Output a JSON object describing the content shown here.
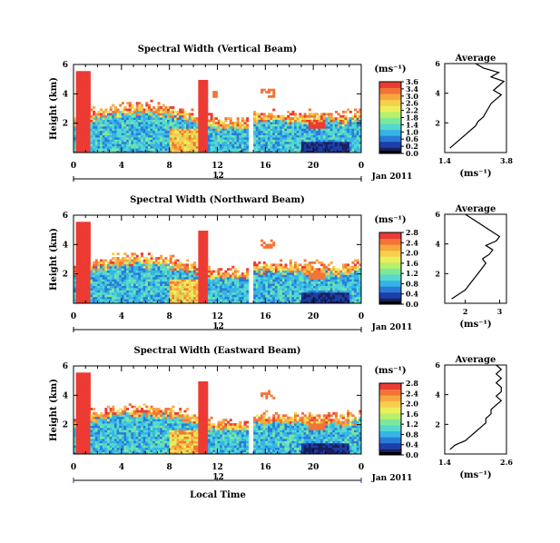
{
  "x_axis_label": "Local Time",
  "colors": {
    "colormap": [
      "#1a1f5c",
      "#1c3fa8",
      "#2a7bd8",
      "#36b4e6",
      "#54d8d0",
      "#7ee89a",
      "#b6f06c",
      "#ecee5c",
      "#f6cf4c",
      "#f7a640",
      "#f37437",
      "#ec3b33"
    ],
    "gap": "#ffffff"
  },
  "chart_data": [
    {
      "type": "heatmap",
      "title": "Spectral Width (Vertical Beam)",
      "ylabel": "Height (km)",
      "y_ticks": [
        "6",
        "4",
        "2"
      ],
      "ylim": [
        0,
        6
      ],
      "x_ticks": [
        "0",
        "4",
        "8",
        "12",
        "16",
        "20",
        "0"
      ],
      "xlim": [
        0,
        24
      ],
      "date_tick": "12",
      "date_label": "Jan 2011",
      "colorbar": {
        "unit": "(ms⁻¹)",
        "ticks": [
          "3.6",
          "3.4",
          "3.0",
          "2.6",
          "2.2",
          "1.8",
          "1.4",
          "1.0",
          "0.6",
          "0.2",
          "0.0"
        ],
        "range": [
          0.0,
          3.6
        ]
      },
      "gap_hours": [
        14.6,
        15.0
      ],
      "profile": {
        "title": "Average",
        "xlabel": "(ms⁻¹)",
        "x_ticks": [
          "1.4",
          "3.8"
        ],
        "xlim": [
          1.4,
          3.8
        ],
        "y_ticks": [
          "6",
          "4",
          "2"
        ],
        "ylim": [
          0,
          6
        ],
        "heights": [
          0.3,
          0.6,
          0.9,
          1.2,
          1.5,
          1.8,
          2.1,
          2.4,
          2.7,
          3.0,
          3.3,
          3.6,
          3.9,
          4.2,
          4.5,
          4.8,
          5.1,
          5.4,
          5.7,
          6.0
        ],
        "values": [
          1.6,
          1.8,
          2.0,
          2.2,
          2.4,
          2.6,
          2.7,
          2.9,
          3.0,
          3.1,
          3.2,
          3.4,
          3.6,
          3.3,
          3.5,
          3.7,
          3.2,
          3.5,
          2.9,
          2.6
        ]
      }
    },
    {
      "type": "heatmap",
      "title": "Spectral Width (Northward Beam)",
      "ylabel": "Height (km)",
      "y_ticks": [
        "6",
        "4",
        "2"
      ],
      "ylim": [
        0,
        6
      ],
      "x_ticks": [
        "0",
        "4",
        "8",
        "12",
        "16",
        "20",
        "0"
      ],
      "xlim": [
        0,
        24
      ],
      "date_tick": "12",
      "date_label": "Jan 2011",
      "colorbar": {
        "unit": "(ms⁻¹)",
        "ticks": [
          "2.8",
          "2.4",
          "2.0",
          "1.6",
          "1.2",
          "0.8",
          "0.4",
          "0.0"
        ],
        "range": [
          0.0,
          2.8
        ]
      },
      "gap_hours": [
        14.6,
        15.0
      ],
      "profile": {
        "title": "Average",
        "xlabel": "(ms⁻¹)",
        "x_ticks": [
          "2",
          "3"
        ],
        "xlim": [
          1.4,
          3.2
        ],
        "y_ticks": [
          "6",
          "4",
          "2"
        ],
        "ylim": [
          0,
          6
        ],
        "heights": [
          0.3,
          0.6,
          0.9,
          1.2,
          1.5,
          1.8,
          2.1,
          2.4,
          2.7,
          3.0,
          3.3,
          3.6,
          3.9,
          4.2,
          4.5,
          4.8,
          5.1,
          5.4,
          5.7,
          6.0
        ],
        "values": [
          1.6,
          1.8,
          2.0,
          2.1,
          2.2,
          2.3,
          2.4,
          2.5,
          2.6,
          2.5,
          2.7,
          2.8,
          2.6,
          2.9,
          3.0,
          2.8,
          2.6,
          2.4,
          2.2,
          2.0
        ]
      }
    },
    {
      "type": "heatmap",
      "title": "Spectral Width (Eastward Beam)",
      "ylabel": "Height (km)",
      "y_ticks": [
        "6",
        "4",
        "2"
      ],
      "ylim": [
        0,
        6
      ],
      "x_ticks": [
        "0",
        "4",
        "8",
        "12",
        "16",
        "20",
        "0"
      ],
      "xlim": [
        0,
        24
      ],
      "date_tick": "12",
      "date_label": "Jan 2011",
      "colorbar": {
        "unit": "(ms⁻¹)",
        "ticks": [
          "2.8",
          "2.4",
          "2.0",
          "1.6",
          "1.2",
          "0.8",
          "0.4",
          "0.0"
        ],
        "range": [
          0.0,
          2.8
        ]
      },
      "gap_hours": [
        14.6,
        15.0
      ],
      "profile": {
        "title": "Average",
        "xlabel": "(ms⁻¹)",
        "x_ticks": [
          "1.4",
          "2.6"
        ],
        "xlim": [
          1.4,
          2.6
        ],
        "y_ticks": [
          "6",
          "4",
          "2"
        ],
        "ylim": [
          0,
          6
        ],
        "heights": [
          0.3,
          0.6,
          0.9,
          1.2,
          1.5,
          1.8,
          2.1,
          2.4,
          2.7,
          3.0,
          3.3,
          3.6,
          3.9,
          4.2,
          4.5,
          4.8,
          5.1,
          5.4,
          5.7,
          6.0
        ],
        "values": [
          1.5,
          1.6,
          1.8,
          1.9,
          2.0,
          2.1,
          2.2,
          2.2,
          2.3,
          2.3,
          2.4,
          2.5,
          2.4,
          2.5,
          2.5,
          2.4,
          2.5,
          2.4,
          2.5,
          2.4
        ]
      }
    }
  ]
}
